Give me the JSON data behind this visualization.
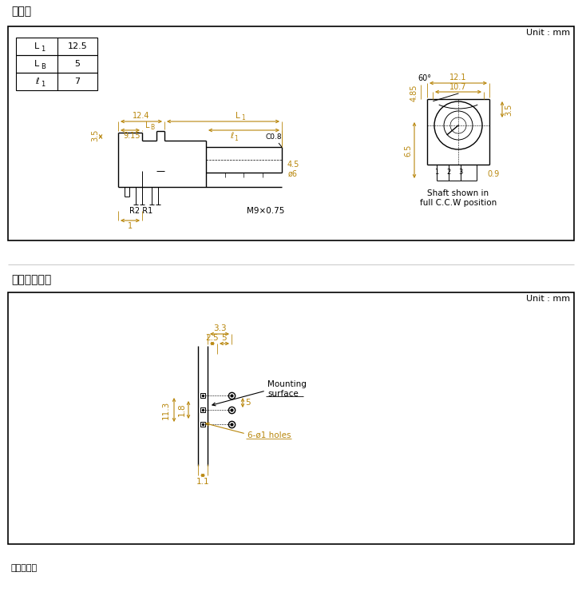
{
  "title1": "外形图",
  "title2": "安装孔尺寸图",
  "footer": "自插入侧置",
  "unit_mm": "Unit : mm",
  "bg_color": "#ffffff",
  "line_color": "#000000",
  "dim_color": "#b8860b",
  "sep_color": "#cccccc"
}
